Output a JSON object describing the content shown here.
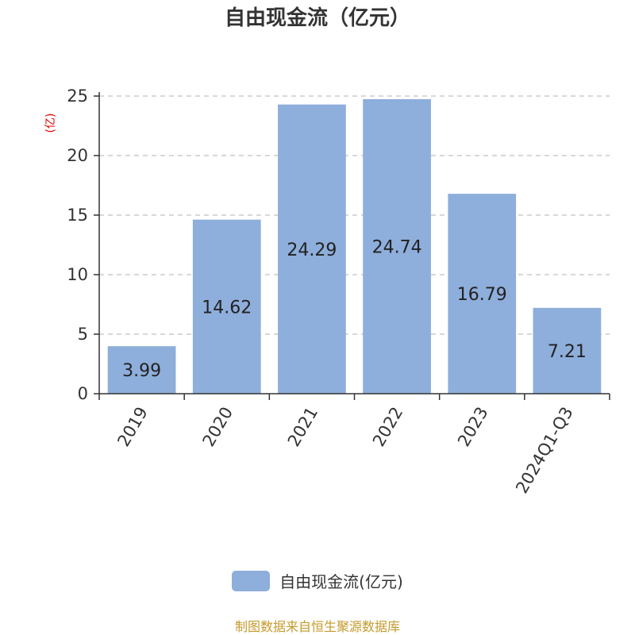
{
  "chart_data": {
    "type": "bar",
    "title": "自由现金流（亿元）",
    "ylabel": "(亿)",
    "xlabel": "",
    "categories": [
      "2019",
      "2020",
      "2021",
      "2022",
      "2023",
      "2024Q1-Q3"
    ],
    "series": [
      {
        "name": "自由现金流(亿元)",
        "values": [
          3.99,
          14.62,
          24.29,
          24.74,
          16.79,
          7.21
        ],
        "color": "#8eaedb"
      }
    ],
    "ylim": [
      0,
      25
    ],
    "yticks": [
      0,
      5,
      10,
      15,
      20,
      25
    ],
    "grid": true,
    "legend_position": "bottom-center"
  },
  "colors": {
    "bar": "#8eaedb",
    "axis": "#333333",
    "grid": "#cccccc",
    "ylabel": "#e00000",
    "source": "#c59a2b"
  },
  "source_note": "制图数据来自恒生聚源数据库"
}
